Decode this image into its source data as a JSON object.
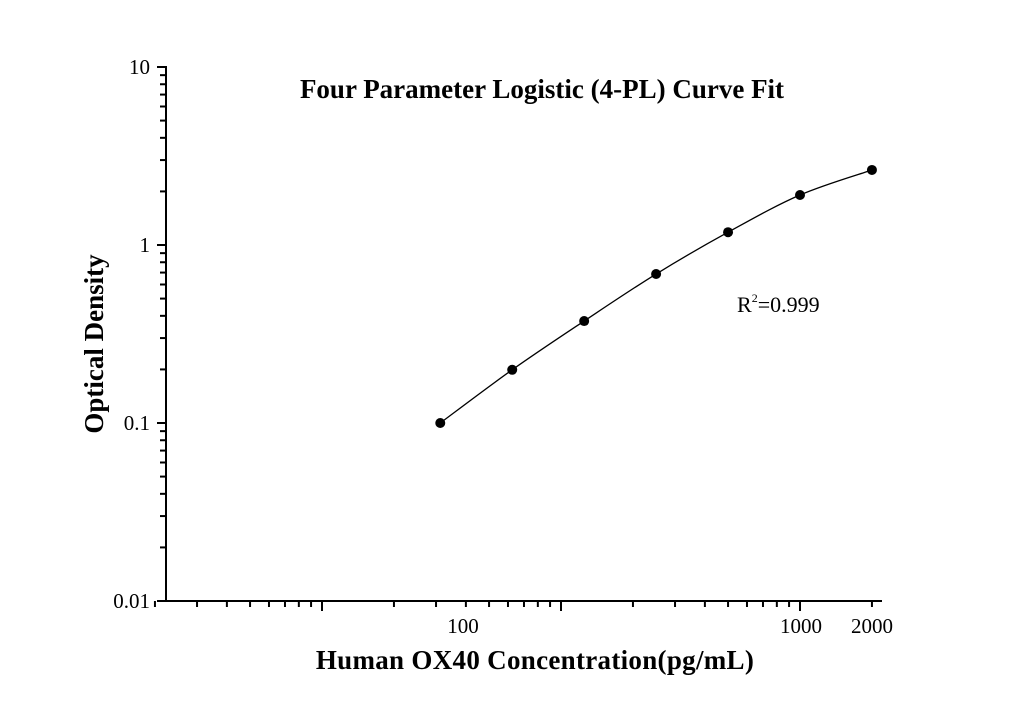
{
  "chart_data": {
    "type": "scatter",
    "title": "Four Parameter Logistic (4-PL) Curve Fit",
    "xlabel": "Human OX40 Concentration(pg/mL)",
    "ylabel": "Optical Density",
    "x_scale": "log",
    "y_scale": "log",
    "xlim": [
      2,
      2200
    ],
    "ylim": [
      0.01,
      10
    ],
    "x_tick_labels": [
      "100",
      "1000",
      "2000"
    ],
    "y_tick_labels": [
      "10",
      "1",
      "0.1",
      "0.01"
    ],
    "grid": false,
    "legend": null,
    "annotation": {
      "text": "R²=0.999",
      "base": "R",
      "superscript": "2",
      "rest": "=0.999"
    },
    "series": [
      {
        "name": "Standard points",
        "marker": "filled-circle",
        "color": "#000000",
        "x": [
          31.25,
          62.5,
          125,
          250,
          500,
          1000,
          2000
        ],
        "y": [
          0.1,
          0.199,
          0.374,
          0.687,
          1.18,
          1.91,
          2.64
        ]
      },
      {
        "name": "4-PL fit curve",
        "line": "solid",
        "color": "#000000"
      }
    ]
  },
  "labels": {
    "title": "Four Parameter Logistic (4-PL) Curve Fit",
    "xlabel": "Human OX40 Concentration(pg/mL)",
    "ylabel": "Optical Density",
    "r2_base": "R",
    "r2_sup": "2",
    "r2_rest": "=0.999",
    "yticks": [
      "10",
      "1",
      "0.1",
      "0.01"
    ],
    "xticks": [
      "100",
      "1000",
      "2000"
    ]
  }
}
